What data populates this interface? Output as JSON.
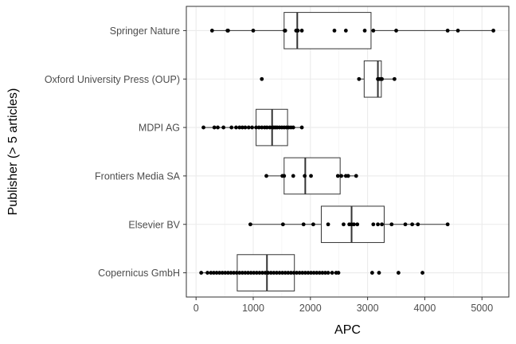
{
  "chart_data": {
    "type": "boxplot",
    "orientation": "horizontal",
    "title": "",
    "xlabel": "APC",
    "ylabel": "Publisher (> 5 articles)",
    "xlim": [
      -170,
      5470
    ],
    "x_ticks": [
      0,
      1000,
      2000,
      3000,
      4000,
      5000
    ],
    "x_tick_labels": [
      "0",
      "1000",
      "2000",
      "3000",
      "4000",
      "5000"
    ],
    "grid": true,
    "legend": "none",
    "categories": [
      "Springer Nature",
      "Oxford University Press (OUP)",
      "MDPI AG",
      "Frontiers Media SA",
      "Elsevier BV",
      "Copernicus GmbH"
    ],
    "boxes": [
      {
        "category": "Springer Nature",
        "whisker_low": 280,
        "q1": 1540,
        "median": 1770,
        "q3": 3060,
        "whisker_high": 5200,
        "points": [
          280,
          550,
          560,
          1000,
          1550,
          1560,
          1750,
          1780,
          1850,
          2420,
          2620,
          2950,
          3100,
          3500,
          4400,
          4580,
          5200
        ]
      },
      {
        "category": "Oxford University Press (OUP)",
        "whisker_low": 2850,
        "q1": 2940,
        "median": 3180,
        "q3": 3240,
        "whisker_high": 3470,
        "points": [
          1150,
          2850,
          3180,
          3200,
          3230,
          3250,
          3470
        ]
      },
      {
        "category": "MDPI AG",
        "whisker_low": 130,
        "q1": 1050,
        "median": 1330,
        "q3": 1600,
        "whisker_high": 1850,
        "points": [
          130,
          320,
          380,
          480,
          620,
          700,
          760,
          810,
          860,
          920,
          980,
          1050,
          1100,
          1150,
          1200,
          1240,
          1290,
          1330,
          1360,
          1390,
          1420,
          1460,
          1500,
          1540,
          1580,
          1620,
          1660,
          1700,
          1850
        ]
      },
      {
        "category": "Frontiers Media SA",
        "whisker_low": 1230,
        "q1": 1540,
        "median": 1910,
        "q3": 2520,
        "whisker_high": 2800,
        "points": [
          1230,
          1510,
          1540,
          1700,
          1900,
          2010,
          2480,
          2540,
          2620,
          2660,
          2800
        ]
      },
      {
        "category": "Elsevier BV",
        "whisker_low": 950,
        "q1": 2190,
        "median": 2720,
        "q3": 3290,
        "whisker_high": 4400,
        "points": [
          950,
          1520,
          1880,
          2050,
          2310,
          2580,
          2680,
          2720,
          2760,
          2820,
          3100,
          3180,
          3250,
          3420,
          3660,
          3780,
          3880,
          4400
        ]
      },
      {
        "category": "Copernicus GmbH",
        "whisker_low": 90,
        "q1": 720,
        "median": 1240,
        "q3": 1720,
        "whisker_high": 2490,
        "points": [
          90,
          200,
          260,
          310,
          360,
          410,
          460,
          510,
          560,
          610,
          660,
          710,
          760,
          810,
          860,
          910,
          960,
          1010,
          1060,
          1110,
          1160,
          1210,
          1260,
          1310,
          1360,
          1410,
          1460,
          1510,
          1560,
          1610,
          1660,
          1710,
          1760,
          1810,
          1860,
          1910,
          1960,
          2010,
          2060,
          2110,
          2160,
          2210,
          2260,
          2310,
          2380,
          2450,
          2490,
          3080,
          3200,
          3540,
          3960
        ]
      }
    ]
  }
}
